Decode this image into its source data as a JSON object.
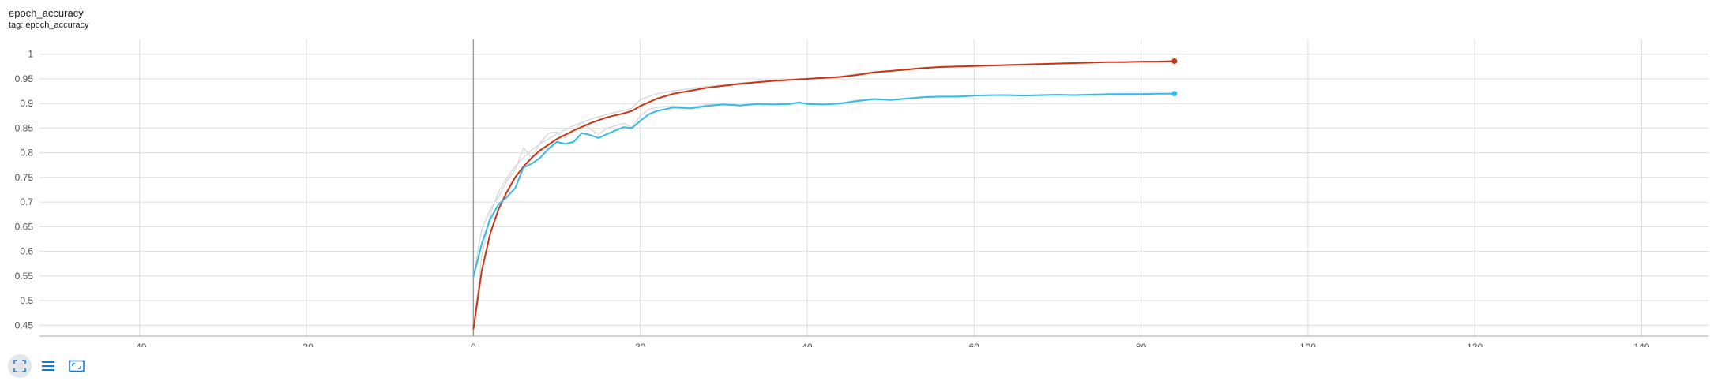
{
  "card": {
    "title": "epoch_accuracy",
    "tag": "tag: epoch_accuracy"
  },
  "toolbar": {
    "buttons": [
      {
        "name": "fullscreen-button",
        "icon": "fullscreen-icon",
        "active": true
      },
      {
        "name": "toggle-log-y-button",
        "icon": "list-lines-icon",
        "active": false
      },
      {
        "name": "fit-domain-button",
        "icon": "fit-to-data-icon",
        "active": false
      }
    ]
  },
  "colors": {
    "series_red": "#cc3311",
    "series_blue": "#33bbee",
    "raw_trace": "#d9d9d9",
    "grid": "#dcdcdc"
  },
  "chart_data": {
    "type": "line",
    "title": "",
    "xlabel": "",
    "ylabel": "",
    "xlim": [
      -52,
      148
    ],
    "ylim": [
      0.428,
      1.03
    ],
    "x_ticks": [
      -40,
      -20,
      0,
      20,
      40,
      60,
      80,
      100,
      120,
      140
    ],
    "x_tick_labels": [
      "-40",
      "-20",
      "0",
      "20",
      "40",
      "60",
      "80",
      "100",
      "120",
      "140"
    ],
    "y_ticks": [
      0.45,
      0.5,
      0.55,
      0.6,
      0.65,
      0.7,
      0.75,
      0.8,
      0.85,
      0.9,
      0.95,
      1
    ],
    "y_tick_labels": [
      "0.45",
      "0.5",
      "0.55",
      "0.6",
      "0.65",
      "0.7",
      "0.75",
      "0.8",
      "0.85",
      "0.9",
      "0.95",
      "1"
    ],
    "grid": true,
    "series": [
      {
        "color": "#cc3311",
        "x": [
          0,
          1,
          2,
          3,
          4,
          5,
          6,
          7,
          8,
          10,
          12,
          14,
          16,
          18,
          19,
          20,
          22,
          24,
          26,
          28,
          30,
          32,
          34,
          36,
          38,
          40,
          42,
          44,
          46,
          48,
          50,
          52,
          54,
          56,
          58,
          60,
          62,
          64,
          66,
          68,
          70,
          72,
          74,
          76,
          78,
          80,
          82,
          84
        ],
        "y": [
          0.442,
          0.56,
          0.635,
          0.685,
          0.72,
          0.75,
          0.772,
          0.79,
          0.805,
          0.828,
          0.845,
          0.86,
          0.872,
          0.88,
          0.885,
          0.895,
          0.91,
          0.92,
          0.926,
          0.932,
          0.936,
          0.94,
          0.943,
          0.946,
          0.948,
          0.95,
          0.952,
          0.954,
          0.958,
          0.963,
          0.966,
          0.969,
          0.972,
          0.974,
          0.975,
          0.976,
          0.977,
          0.978,
          0.979,
          0.98,
          0.981,
          0.982,
          0.983,
          0.984,
          0.984,
          0.985,
          0.985,
          0.986
        ],
        "raw_y": [
          0.442,
          0.59,
          0.675,
          0.72,
          0.748,
          0.772,
          0.79,
          0.806,
          0.818,
          0.838,
          0.855,
          0.868,
          0.878,
          0.886,
          0.89,
          0.908,
          0.92,
          0.926,
          0.93,
          0.935,
          0.938,
          0.942,
          0.944,
          0.947,
          0.949,
          0.951,
          0.953,
          0.955,
          0.96,
          0.965,
          0.967,
          0.97,
          0.973,
          0.975,
          0.976,
          0.977,
          0.978,
          0.979,
          0.98,
          0.981,
          0.982,
          0.983,
          0.984,
          0.984,
          0.985,
          0.985,
          0.986,
          0.986
        ]
      },
      {
        "color": "#33bbee",
        "x": [
          0,
          1,
          2,
          3,
          4,
          5,
          6,
          7,
          8,
          9,
          10,
          11,
          12,
          13,
          14,
          15,
          16,
          17,
          18,
          19,
          20,
          21,
          22,
          24,
          26,
          28,
          30,
          32,
          34,
          36,
          38,
          39,
          40,
          42,
          44,
          46,
          48,
          50,
          52,
          54,
          56,
          58,
          60,
          62,
          64,
          66,
          68,
          70,
          72,
          74,
          76,
          78,
          80,
          82,
          84
        ],
        "y": [
          0.548,
          0.615,
          0.665,
          0.695,
          0.71,
          0.728,
          0.77,
          0.778,
          0.79,
          0.808,
          0.822,
          0.818,
          0.822,
          0.84,
          0.836,
          0.83,
          0.838,
          0.845,
          0.852,
          0.85,
          0.865,
          0.878,
          0.885,
          0.892,
          0.89,
          0.895,
          0.898,
          0.896,
          0.899,
          0.898,
          0.899,
          0.902,
          0.899,
          0.898,
          0.9,
          0.905,
          0.909,
          0.907,
          0.91,
          0.913,
          0.914,
          0.914,
          0.916,
          0.917,
          0.917,
          0.916,
          0.917,
          0.918,
          0.917,
          0.918,
          0.919,
          0.919,
          0.919,
          0.92,
          0.92
        ],
        "raw_y": [
          0.548,
          0.645,
          0.685,
          0.71,
          0.742,
          0.765,
          0.81,
          0.79,
          0.82,
          0.84,
          0.842,
          0.83,
          0.845,
          0.862,
          0.848,
          0.838,
          0.85,
          0.855,
          0.86,
          0.852,
          0.875,
          0.888,
          0.892,
          0.895,
          0.892,
          0.898,
          0.9,
          0.897,
          0.9,
          0.899,
          0.9,
          0.903,
          0.9,
          0.898,
          0.901,
          0.907,
          0.91,
          0.908,
          0.911,
          0.914,
          0.915,
          0.915,
          0.917,
          0.917,
          0.918,
          0.917,
          0.918,
          0.918,
          0.918,
          0.919,
          0.919,
          0.92,
          0.92,
          0.92,
          0.92
        ]
      }
    ]
  }
}
